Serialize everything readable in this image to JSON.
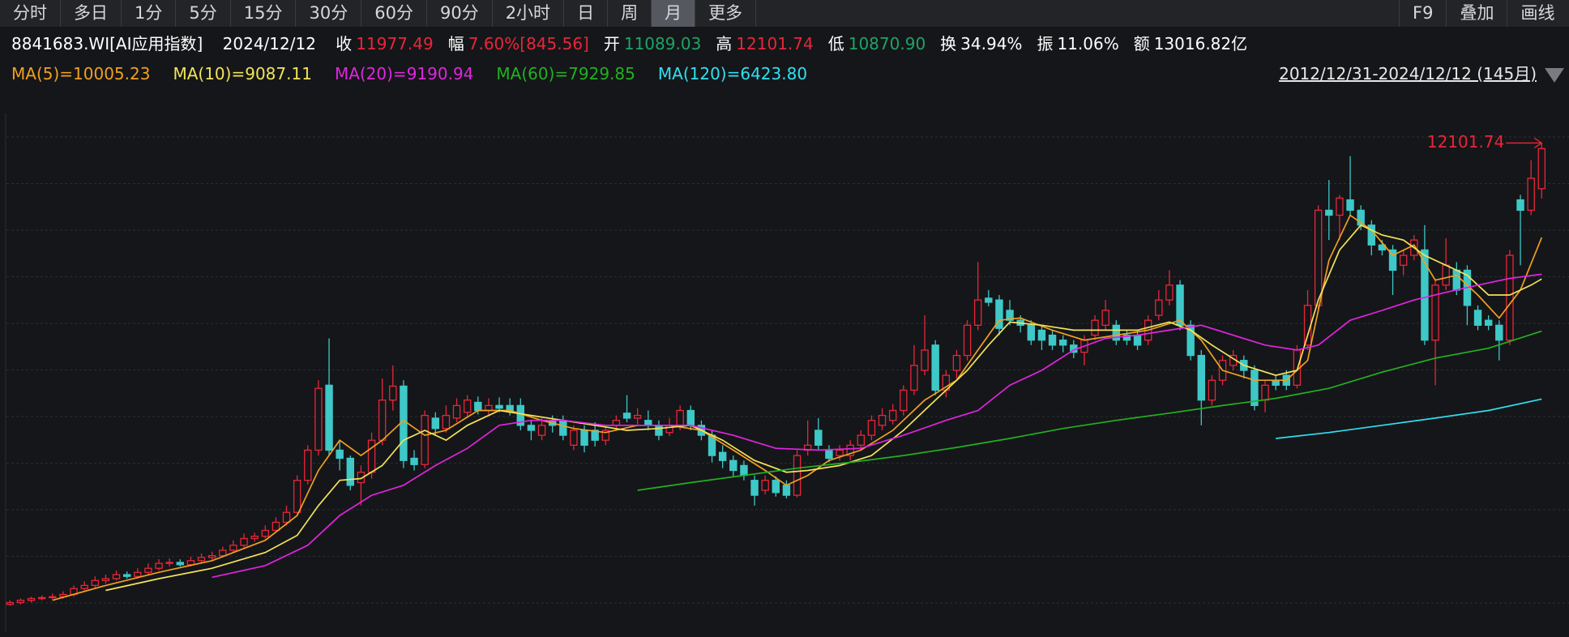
{
  "toolbar": {
    "tabs": [
      "分时",
      "多日",
      "1分",
      "5分",
      "15分",
      "30分",
      "60分",
      "90分",
      "2小时",
      "日",
      "周",
      "月",
      "更多"
    ],
    "active_tab": 11,
    "right_tabs": [
      "F9",
      "叠加",
      "画线"
    ]
  },
  "quote": {
    "code": "8841683.WI[AI应用指数]",
    "date": "2024/12/12",
    "items": [
      {
        "label": "收",
        "value": "11977.49",
        "color": "#e8263a"
      },
      {
        "label": "幅",
        "value": "7.60%[845.56]",
        "color": "#e8263a"
      },
      {
        "label": "开",
        "value": "11089.03",
        "color": "#1fa366"
      },
      {
        "label": "高",
        "value": "12101.74",
        "color": "#e8263a"
      },
      {
        "label": "低",
        "value": "10870.90",
        "color": "#1fa366"
      },
      {
        "label": "换",
        "value": "34.94%",
        "color": "#ffffff"
      },
      {
        "label": "振",
        "value": "11.06%",
        "color": "#ffffff"
      },
      {
        "label": "额",
        "value": "13016.82亿",
        "color": "#ffffff"
      }
    ]
  },
  "chart_data": {
    "type": "candlestick",
    "date_range": "2012/12/31-2024/12/12 (145月)",
    "ylim": [
      1290,
      13170
    ],
    "up_color": "#e8263a",
    "down_color": "#3ec8c8",
    "high_marker": 12101.74,
    "candles": [
      [
        1870,
        1960,
        1840,
        1910
      ],
      [
        1910,
        2000,
        1870,
        1960
      ],
      [
        1960,
        2040,
        1910,
        2000
      ],
      [
        2000,
        2070,
        1960,
        2020
      ],
      [
        2020,
        2110,
        1980,
        2040
      ],
      [
        2040,
        2160,
        2000,
        2090
      ],
      [
        2090,
        2290,
        2040,
        2220
      ],
      [
        2220,
        2380,
        2180,
        2290
      ],
      [
        2290,
        2490,
        2240,
        2400
      ],
      [
        2400,
        2530,
        2330,
        2440
      ],
      [
        2440,
        2620,
        2400,
        2530
      ],
      [
        2530,
        2600,
        2440,
        2490
      ],
      [
        2490,
        2670,
        2440,
        2580
      ],
      [
        2580,
        2780,
        2530,
        2670
      ],
      [
        2670,
        2870,
        2620,
        2780
      ],
      [
        2780,
        2890,
        2710,
        2800
      ],
      [
        2800,
        2870,
        2710,
        2750
      ],
      [
        2750,
        2930,
        2710,
        2840
      ],
      [
        2840,
        3000,
        2800,
        2910
      ],
      [
        2910,
        3040,
        2840,
        2950
      ],
      [
        2950,
        3150,
        2910,
        3070
      ],
      [
        3070,
        3290,
        3020,
        3180
      ],
      [
        3180,
        3440,
        3130,
        3330
      ],
      [
        3330,
        3460,
        3260,
        3380
      ],
      [
        3380,
        3620,
        3330,
        3510
      ],
      [
        3510,
        3800,
        3460,
        3690
      ],
      [
        3690,
        4060,
        3620,
        3910
      ],
      [
        3910,
        4730,
        3840,
        4620
      ],
      [
        4620,
        5400,
        4530,
        5290
      ],
      [
        5290,
        6840,
        5170,
        6660
      ],
      [
        6730,
        7770,
        5170,
        5290
      ],
      [
        5290,
        5510,
        4840,
        5110
      ],
      [
        5110,
        5170,
        4400,
        4510
      ],
      [
        4570,
        4950,
        4060,
        4800
      ],
      [
        4800,
        5680,
        4660,
        5510
      ],
      [
        5510,
        6880,
        5400,
        6400
      ],
      [
        6400,
        7170,
        6170,
        6710
      ],
      [
        6710,
        6840,
        4890,
        5060
      ],
      [
        5110,
        5290,
        4840,
        4970
      ],
      [
        4970,
        6170,
        4890,
        6060
      ],
      [
        6000,
        6130,
        5620,
        5770
      ],
      [
        5770,
        6280,
        5680,
        6060
      ],
      [
        6000,
        6440,
        5910,
        6280
      ],
      [
        6130,
        6510,
        6000,
        6400
      ],
      [
        6350,
        6480,
        6080,
        6170
      ],
      [
        6170,
        6440,
        6080,
        6280
      ],
      [
        6280,
        6460,
        6130,
        6220
      ],
      [
        6280,
        6440,
        6060,
        6150
      ],
      [
        6280,
        6440,
        5730,
        5840
      ],
      [
        5840,
        5950,
        5510,
        5730
      ],
      [
        5620,
        6000,
        5510,
        5840
      ],
      [
        5950,
        6060,
        5680,
        5840
      ],
      [
        5950,
        6060,
        5510,
        5620
      ],
      [
        5400,
        5840,
        5290,
        5730
      ],
      [
        5730,
        5840,
        5240,
        5400
      ],
      [
        5730,
        5910,
        5370,
        5510
      ],
      [
        5510,
        5840,
        5400,
        5730
      ],
      [
        5840,
        6060,
        5730,
        5950
      ],
      [
        6110,
        6510,
        5910,
        6000
      ],
      [
        6000,
        6220,
        5860,
        6060
      ],
      [
        5950,
        6170,
        5730,
        5840
      ],
      [
        5840,
        5950,
        5510,
        5620
      ],
      [
        5680,
        6000,
        5600,
        5840
      ],
      [
        5840,
        6280,
        5730,
        6170
      ],
      [
        6170,
        6280,
        5730,
        5840
      ],
      [
        5840,
        5950,
        5510,
        5620
      ],
      [
        5620,
        5730,
        5020,
        5170
      ],
      [
        5240,
        5400,
        4890,
        5060
      ],
      [
        5060,
        5170,
        4710,
        4840
      ],
      [
        4950,
        5060,
        4620,
        4730
      ],
      [
        4620,
        4730,
        4060,
        4290
      ],
      [
        4400,
        4730,
        4310,
        4620
      ],
      [
        4620,
        4710,
        4260,
        4350
      ],
      [
        4510,
        4620,
        4220,
        4290
      ],
      [
        4290,
        5290,
        4240,
        5170
      ],
      [
        5290,
        5950,
        5170,
        5400
      ],
      [
        5730,
        6000,
        5290,
        5400
      ],
      [
        5290,
        5400,
        5020,
        5110
      ],
      [
        5170,
        5400,
        5060,
        5290
      ],
      [
        5170,
        5510,
        5060,
        5400
      ],
      [
        5400,
        5730,
        5290,
        5620
      ],
      [
        5620,
        6060,
        5510,
        5950
      ],
      [
        5840,
        6220,
        5730,
        6060
      ],
      [
        5950,
        6310,
        5860,
        6170
      ],
      [
        6170,
        6730,
        6060,
        6620
      ],
      [
        6620,
        7620,
        6510,
        7170
      ],
      [
        7060,
        8280,
        6950,
        7510
      ],
      [
        7620,
        7730,
        6510,
        6620
      ],
      [
        6620,
        7060,
        6460,
        6950
      ],
      [
        7060,
        7510,
        6880,
        7390
      ],
      [
        7390,
        8170,
        7280,
        8060
      ],
      [
        8060,
        9460,
        7950,
        8620
      ],
      [
        8660,
        8840,
        8480,
        8570
      ],
      [
        8620,
        8730,
        7840,
        7990
      ],
      [
        8390,
        8620,
        8060,
        8170
      ],
      [
        8170,
        8280,
        7900,
        8060
      ],
      [
        8060,
        8170,
        7620,
        7730
      ],
      [
        7950,
        8060,
        7510,
        7730
      ],
      [
        7840,
        7950,
        7510,
        7620
      ],
      [
        7730,
        7840,
        7460,
        7620
      ],
      [
        7620,
        7730,
        7330,
        7460
      ],
      [
        7460,
        7840,
        7170,
        7730
      ],
      [
        7840,
        8280,
        7730,
        8170
      ],
      [
        8060,
        8620,
        7950,
        8390
      ],
      [
        8060,
        8170,
        7620,
        7730
      ],
      [
        7840,
        7950,
        7620,
        7730
      ],
      [
        7840,
        7950,
        7510,
        7620
      ],
      [
        7730,
        8280,
        7620,
        8170
      ],
      [
        8280,
        8840,
        8170,
        8620
      ],
      [
        8620,
        9280,
        8500,
        8950
      ],
      [
        8950,
        9060,
        7950,
        8060
      ],
      [
        8060,
        8170,
        7280,
        7390
      ],
      [
        7390,
        7510,
        5840,
        6400
      ],
      [
        6400,
        6950,
        6280,
        6840
      ],
      [
        6840,
        7390,
        6730,
        7280
      ],
      [
        7170,
        7510,
        7060,
        7390
      ],
      [
        7280,
        7390,
        6880,
        7060
      ],
      [
        7060,
        7170,
        6170,
        6280
      ],
      [
        6400,
        6840,
        6130,
        6730
      ],
      [
        6840,
        6950,
        6620,
        6730
      ],
      [
        6950,
        7060,
        6620,
        6730
      ],
      [
        6730,
        7620,
        6660,
        7510
      ],
      [
        7620,
        8840,
        7510,
        8500
      ],
      [
        8500,
        10720,
        8390,
        10610
      ],
      [
        10610,
        11280,
        9950,
        10500
      ],
      [
        10500,
        10950,
        9950,
        10880
      ],
      [
        10840,
        11810,
        10500,
        10610
      ],
      [
        10610,
        10720,
        10170,
        10280
      ],
      [
        10280,
        10390,
        9610,
        9840
      ],
      [
        9840,
        9950,
        9610,
        9730
      ],
      [
        9730,
        9840,
        8730,
        9280
      ],
      [
        9390,
        9730,
        9170,
        9610
      ],
      [
        9610,
        10060,
        9500,
        9950
      ],
      [
        9730,
        10280,
        7620,
        7730
      ],
      [
        7730,
        9060,
        6730,
        8950
      ],
      [
        8950,
        9990,
        8840,
        9390
      ],
      [
        9280,
        9460,
        8730,
        8840
      ],
      [
        9280,
        9390,
        8060,
        8500
      ],
      [
        8390,
        8500,
        7950,
        8060
      ],
      [
        8170,
        8280,
        7950,
        8060
      ],
      [
        8060,
        8170,
        7280,
        7730
      ],
      [
        7730,
        9730,
        7620,
        9610
      ],
      [
        10840,
        10950,
        9390,
        10610
      ],
      [
        10610,
        11720,
        10500,
        11320
      ],
      [
        11089.03,
        12101.74,
        10870.9,
        11977.49
      ]
    ],
    "series": [
      {
        "name": "MA(5)=10005.23",
        "color": "#f0a020",
        "x": [
          4,
          9,
          14,
          19,
          24,
          27,
          29,
          31,
          33,
          35,
          37,
          39,
          41,
          44,
          47,
          50,
          53,
          56,
          59,
          62,
          65,
          68,
          71,
          73,
          75,
          77,
          80,
          83,
          86,
          89,
          91,
          93,
          95,
          98,
          101,
          104,
          107,
          110,
          112,
          114,
          117,
          120,
          122,
          124,
          126,
          128,
          130,
          132,
          134,
          136,
          138,
          140,
          142,
          144
        ],
        "values": [
          1960,
          2290,
          2580,
          2840,
          3290,
          3840,
          4840,
          5510,
          5170,
          5510,
          5950,
          5620,
          5730,
          6170,
          6170,
          5950,
          5770,
          5680,
          5840,
          5840,
          5730,
          5290,
          4840,
          4510,
          4730,
          5060,
          5290,
          5730,
          6400,
          6840,
          7510,
          8170,
          8220,
          7950,
          7730,
          7840,
          7950,
          8170,
          7730,
          7060,
          6840,
          6840,
          7280,
          9500,
          10500,
          10170,
          9610,
          9840,
          9060,
          9170,
          8730,
          8220,
          8840,
          10005.23
        ]
      },
      {
        "name": "MA(10)=9087.11",
        "color": "#f2e35a",
        "x": [
          9,
          14,
          19,
          24,
          27,
          29,
          31,
          33,
          35,
          37,
          39,
          41,
          43,
          46,
          49,
          52,
          55,
          58,
          61,
          64,
          67,
          70,
          73,
          75,
          78,
          81,
          84,
          87,
          90,
          92,
          94,
          97,
          100,
          103,
          106,
          109,
          111,
          113,
          116,
          119,
          121,
          123,
          125,
          127,
          129,
          131,
          133,
          135,
          137,
          139,
          141,
          143,
          144
        ],
        "values": [
          2180,
          2440,
          2670,
          3020,
          3400,
          4060,
          4620,
          4660,
          4950,
          5510,
          5730,
          5510,
          5840,
          6170,
          6060,
          5950,
          5840,
          5730,
          5770,
          5840,
          5510,
          5060,
          4800,
          4840,
          4950,
          5170,
          5730,
          6400,
          7060,
          7620,
          8130,
          8060,
          7950,
          7950,
          7950,
          8130,
          7950,
          7620,
          7170,
          6950,
          7060,
          8620,
          9730,
          10280,
          10060,
          9950,
          9610,
          9390,
          9170,
          8730,
          8730,
          8950,
          9087.11
        ]
      },
      {
        "name": "MA(20)=9190.94",
        "color": "#e025e0",
        "x": [
          19,
          24,
          28,
          31,
          34,
          37,
          40,
          43,
          46,
          49,
          52,
          56,
          60,
          64,
          68,
          72,
          76,
          80,
          84,
          88,
          91,
          94,
          97,
          100,
          103,
          106,
          109,
          112,
          115,
          118,
          121,
          123,
          126,
          129,
          132,
          135,
          138,
          141,
          144
        ],
        "values": [
          2470,
          2730,
          3180,
          3840,
          4290,
          4510,
          4950,
          5330,
          5840,
          5950,
          5950,
          5840,
          5840,
          5840,
          5620,
          5330,
          5290,
          5330,
          5620,
          5950,
          6170,
          6730,
          7060,
          7510,
          7770,
          7840,
          7950,
          8060,
          7840,
          7620,
          7510,
          7620,
          8170,
          8390,
          8620,
          8790,
          8950,
          9100,
          9190.94
        ]
      },
      {
        "name": "MA(60)=7929.85",
        "color": "#22b022",
        "x": [
          59,
          64,
          69,
          74,
          79,
          84,
          89,
          94,
          99,
          104,
          109,
          114,
          119,
          124,
          129,
          134,
          139,
          144
        ],
        "values": [
          4400,
          4570,
          4730,
          4890,
          5020,
          5170,
          5350,
          5550,
          5770,
          5950,
          6110,
          6280,
          6440,
          6660,
          7020,
          7330,
          7550,
          7929.85
        ]
      },
      {
        "name": "MA(120)=6423.80",
        "color": "#30e0f0",
        "x": [
          119,
          124,
          129,
          134,
          139,
          144
        ],
        "values": [
          5550,
          5680,
          5840,
          6000,
          6170,
          6423.8
        ]
      }
    ]
  }
}
